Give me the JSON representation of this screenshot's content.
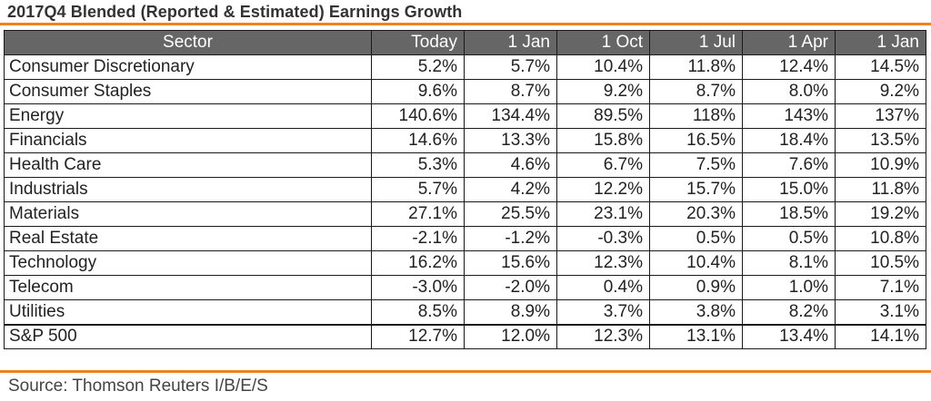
{
  "title": "2017Q4 Blended (Reported & Estimated) Earnings Growth",
  "source": "Source: Thomson Reuters I/B/E/S",
  "colors": {
    "accent_rule": "#f0821e",
    "header_bg": "#666666",
    "header_text": "#ffffff"
  },
  "chart_data": {
    "type": "table",
    "title": "2017Q4 Blended (Reported & Estimated) Earnings Growth",
    "columns": [
      "Sector",
      "Today",
      "1 Jan",
      "1 Oct",
      "1 Jul",
      "1 Apr",
      "1 Jan"
    ],
    "rows": [
      [
        "Consumer Discretionary",
        "5.2%",
        "5.7%",
        "10.4%",
        "11.8%",
        "12.4%",
        "14.5%"
      ],
      [
        "Consumer Staples",
        "9.6%",
        "8.7%",
        "9.2%",
        "8.7%",
        "8.0%",
        "9.2%"
      ],
      [
        "Energy",
        "140.6%",
        "134.4%",
        "89.5%",
        "118%",
        "143%",
        "137%"
      ],
      [
        "Financials",
        "14.6%",
        "13.3%",
        "15.8%",
        "16.5%",
        "18.4%",
        "13.5%"
      ],
      [
        "Health Care",
        "5.3%",
        "4.6%",
        "6.7%",
        "7.5%",
        "7.6%",
        "10.9%"
      ],
      [
        "Industrials",
        "5.7%",
        "4.2%",
        "12.2%",
        "15.7%",
        "15.0%",
        "11.8%"
      ],
      [
        "Materials",
        "27.1%",
        "25.5%",
        "23.1%",
        "20.3%",
        "18.5%",
        "19.2%"
      ],
      [
        "Real Estate",
        "-2.1%",
        "-1.2%",
        "-0.3%",
        "0.5%",
        "0.5%",
        "10.8%"
      ],
      [
        "Technology",
        "16.2%",
        "15.6%",
        "12.3%",
        "10.4%",
        "8.1%",
        "10.5%"
      ],
      [
        "Telecom",
        "-3.0%",
        "-2.0%",
        "0.4%",
        "0.9%",
        "1.0%",
        "7.1%"
      ],
      [
        "Utilities",
        "8.5%",
        "8.9%",
        "3.7%",
        "3.8%",
        "8.2%",
        "3.1%"
      ]
    ],
    "total_row": [
      "S&P 500",
      "12.7%",
      "12.0%",
      "12.3%",
      "13.1%",
      "13.4%",
      "14.1%"
    ]
  }
}
